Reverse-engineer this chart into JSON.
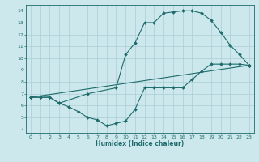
{
  "xlabel": "Humidex (Indice chaleur)",
  "bg_color": "#cce8ec",
  "grid_color": "#aacdd4",
  "line_color": "#1e6b6b",
  "xlim": [
    -0.5,
    23.5
  ],
  "ylim": [
    3.7,
    14.5
  ],
  "xticks": [
    0,
    1,
    2,
    3,
    4,
    5,
    6,
    7,
    8,
    9,
    10,
    11,
    12,
    13,
    14,
    15,
    16,
    17,
    18,
    19,
    20,
    21,
    22,
    23
  ],
  "yticks": [
    4,
    5,
    6,
    7,
    8,
    9,
    10,
    11,
    12,
    13,
    14
  ],
  "line1_x": [
    0,
    1,
    2,
    3,
    4,
    5,
    6,
    7,
    8,
    9,
    10,
    11,
    12,
    13,
    14,
    15,
    16,
    17,
    18,
    19,
    20,
    21,
    22,
    23
  ],
  "line1_y": [
    6.7,
    6.7,
    6.7,
    6.2,
    5.9,
    5.5,
    5.0,
    4.8,
    4.3,
    4.5,
    4.7,
    5.7,
    7.5,
    7.5,
    7.5,
    7.5,
    7.5,
    8.2,
    8.9,
    9.5,
    9.5,
    9.5,
    9.5,
    9.4
  ],
  "line2_x": [
    0,
    1,
    2,
    3,
    6,
    9,
    10,
    11,
    12,
    13,
    14,
    15,
    16,
    17,
    18,
    19,
    20,
    21,
    22,
    23
  ],
  "line2_y": [
    6.7,
    6.7,
    6.7,
    6.2,
    7.0,
    7.5,
    10.3,
    11.3,
    13.0,
    13.0,
    13.8,
    13.9,
    14.0,
    14.0,
    13.8,
    13.2,
    12.2,
    11.1,
    10.3,
    9.4
  ],
  "line3_x": [
    0,
    23
  ],
  "line3_y": [
    6.7,
    9.4
  ]
}
